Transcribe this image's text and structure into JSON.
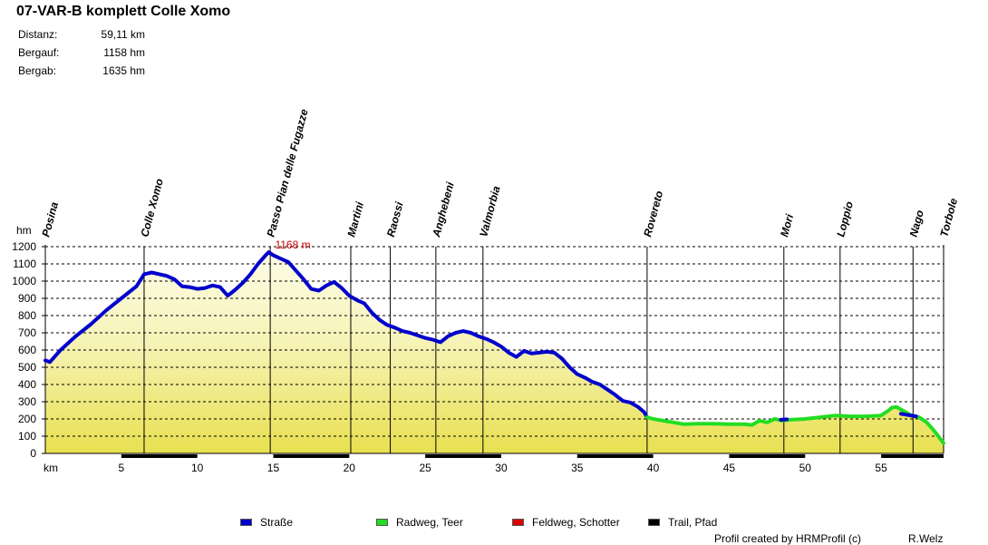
{
  "header": {
    "title": "07-VAR-B komplett Colle Xomo",
    "stats": [
      {
        "label": "Distanz:",
        "value": "59,11 km"
      },
      {
        "label": "Bergauf:",
        "value": "1158 hm"
      },
      {
        "label": "Bergab:",
        "value": "1635 hm"
      }
    ]
  },
  "chart_data": {
    "type": "area",
    "ylabel": "hm",
    "xlabel": "km",
    "xlim": [
      0,
      59.11
    ],
    "ylim": [
      0,
      1200
    ],
    "yticks": [
      0,
      100,
      200,
      300,
      400,
      500,
      600,
      700,
      800,
      900,
      1000,
      1100,
      1200
    ],
    "xticks": [
      5,
      10,
      15,
      20,
      25,
      30,
      35,
      40,
      45,
      50,
      55
    ],
    "grid": "horizontal dashed",
    "max_label": "1168 m",
    "max_point": {
      "x": 14.7,
      "y": 1168
    },
    "waypoints": [
      {
        "name": "Posina",
        "x": 0.0
      },
      {
        "name": "Colle Xomo",
        "x": 6.5
      },
      {
        "name": "Passo Pian delle Fugazze",
        "x": 14.8
      },
      {
        "name": "Martini",
        "x": 20.1
      },
      {
        "name": "Raossi",
        "x": 22.7
      },
      {
        "name": "Anghebeni",
        "x": 25.7
      },
      {
        "name": "Valmorbia",
        "x": 28.8
      },
      {
        "name": "Rovereto",
        "x": 39.6
      },
      {
        "name": "Mori",
        "x": 48.6
      },
      {
        "name": "Loppio",
        "x": 52.3
      },
      {
        "name": "Nago",
        "x": 57.1
      },
      {
        "name": "Torbole",
        "x": 59.11
      }
    ],
    "series": [
      {
        "name": "Straße",
        "color": "#0000cc",
        "points": [
          [
            0,
            540
          ],
          [
            0.3,
            530
          ],
          [
            1,
            600
          ],
          [
            2,
            680
          ],
          [
            3,
            750
          ],
          [
            4,
            830
          ],
          [
            5,
            900
          ],
          [
            6,
            970
          ],
          [
            6.5,
            1040
          ],
          [
            7,
            1050
          ],
          [
            8,
            1030
          ],
          [
            8.5,
            1010
          ],
          [
            9,
            970
          ],
          [
            9.5,
            965
          ],
          [
            10,
            955
          ],
          [
            10.5,
            960
          ],
          [
            11,
            975
          ],
          [
            11.5,
            965
          ],
          [
            12,
            915
          ],
          [
            12.5,
            950
          ],
          [
            13,
            990
          ],
          [
            13.5,
            1040
          ],
          [
            14,
            1100
          ],
          [
            14.5,
            1150
          ],
          [
            14.7,
            1168
          ],
          [
            15,
            1150
          ],
          [
            15.5,
            1130
          ],
          [
            16,
            1110
          ],
          [
            16.5,
            1060
          ],
          [
            17,
            1010
          ],
          [
            17.5,
            955
          ],
          [
            18,
            945
          ],
          [
            18.5,
            975
          ],
          [
            19,
            995
          ],
          [
            19.5,
            960
          ],
          [
            20,
            915
          ],
          [
            20.5,
            890
          ],
          [
            21,
            870
          ],
          [
            21.5,
            815
          ],
          [
            22,
            775
          ],
          [
            22.5,
            745
          ],
          [
            23,
            730
          ],
          [
            23.5,
            710
          ],
          [
            24,
            700
          ],
          [
            24.5,
            685
          ],
          [
            25,
            670
          ],
          [
            25.5,
            660
          ],
          [
            26,
            645
          ],
          [
            26.5,
            680
          ],
          [
            27,
            700
          ],
          [
            27.5,
            710
          ],
          [
            28,
            700
          ],
          [
            28.5,
            680
          ],
          [
            29,
            665
          ],
          [
            29.5,
            645
          ],
          [
            30,
            620
          ],
          [
            30.5,
            585
          ],
          [
            31,
            560
          ],
          [
            31.5,
            595
          ],
          [
            32,
            580
          ],
          [
            32.5,
            585
          ],
          [
            33,
            590
          ],
          [
            33.5,
            585
          ],
          [
            34,
            550
          ],
          [
            34.5,
            500
          ],
          [
            35,
            460
          ],
          [
            35.5,
            440
          ],
          [
            36,
            415
          ],
          [
            36.5,
            400
          ],
          [
            37,
            370
          ],
          [
            37.5,
            340
          ],
          [
            38,
            305
          ],
          [
            38.5,
            295
          ],
          [
            39,
            270
          ],
          [
            39.4,
            240
          ],
          [
            39.6,
            210
          ]
        ]
      },
      {
        "name": "Radweg, Teer",
        "color": "#22dd22",
        "points": [
          [
            39.6,
            210
          ],
          [
            40,
            200
          ],
          [
            41,
            185
          ],
          [
            42,
            170
          ],
          [
            43,
            172
          ],
          [
            44,
            172
          ],
          [
            45,
            170
          ],
          [
            46,
            170
          ],
          [
            46.5,
            165
          ],
          [
            47,
            190
          ],
          [
            47.5,
            180
          ],
          [
            48,
            200
          ],
          [
            48.5,
            190
          ],
          [
            49,
            195
          ],
          [
            50,
            200
          ],
          [
            51,
            210
          ],
          [
            52,
            220
          ],
          [
            53,
            215
          ],
          [
            54,
            215
          ],
          [
            55,
            220
          ],
          [
            55.5,
            250
          ],
          [
            55.7,
            265
          ],
          [
            56,
            270
          ],
          [
            56.5,
            245
          ],
          [
            57,
            220
          ],
          [
            57.5,
            210
          ],
          [
            58,
            180
          ],
          [
            58.5,
            130
          ],
          [
            59.11,
            60
          ]
        ]
      },
      {
        "name": "Feldweg, Schotter",
        "color": "#dd0000",
        "points": []
      },
      {
        "name": "Trail, Pfad",
        "color": "#000000",
        "points": []
      }
    ],
    "overlays": [
      {
        "series": "Straße",
        "points": [
          [
            48.4,
            195
          ],
          [
            48.8,
            198
          ]
        ]
      },
      {
        "series": "Straße",
        "points": [
          [
            56.3,
            230
          ],
          [
            57.3,
            215
          ]
        ]
      }
    ],
    "legend_position": "bottom",
    "legend": [
      {
        "label": "Straße",
        "color": "#0000cc"
      },
      {
        "label": "Radweg, Teer",
        "color": "#22dd22"
      },
      {
        "label": "Feldweg, Schotter",
        "color": "#dd0000"
      },
      {
        "label": "Trail, Pfad",
        "color": "#000000"
      }
    ]
  },
  "footer": {
    "credit": "Profil created by HRMProfil (c)",
    "author": "R.Welz"
  }
}
